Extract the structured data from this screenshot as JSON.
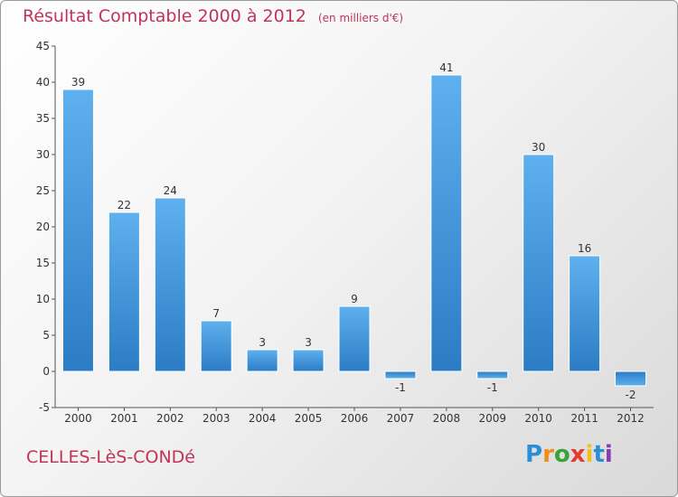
{
  "chart_data": {
    "type": "bar",
    "title": "Résultat Comptable 2000 à 2012",
    "subtitle": "(en milliers d'€)",
    "xlabel": "",
    "ylabel": "",
    "categories": [
      "2000",
      "2001",
      "2002",
      "2003",
      "2004",
      "2005",
      "2006",
      "2007",
      "2008",
      "2009",
      "2010",
      "2011",
      "2012"
    ],
    "values": [
      39,
      22,
      24,
      7,
      3,
      3,
      9,
      -1,
      41,
      -1,
      30,
      16,
      -2
    ],
    "value_labels": [
      "39",
      "22",
      "24",
      "7",
      "3",
      "3",
      "9",
      "-1",
      "41",
      "-1",
      "30",
      "16",
      "-2"
    ],
    "ylim": [
      -5,
      45
    ],
    "yticks": [
      "-5",
      "0",
      "5",
      "10",
      "15",
      "20",
      "25",
      "30",
      "35",
      "40",
      "45"
    ],
    "grid": false,
    "bar_color": "#3a8fd8"
  },
  "footer": {
    "commune": "CELLES-LèS-CONDé",
    "logo_letters": [
      "P",
      "r",
      "o",
      "x",
      "i",
      "t",
      "i"
    ],
    "logo_colors": [
      "#2a8fd6",
      "#f08c1a",
      "#3aa33a",
      "#e63a2e",
      "#f0c020",
      "#2a8fd6",
      "#8a3ab0"
    ]
  }
}
